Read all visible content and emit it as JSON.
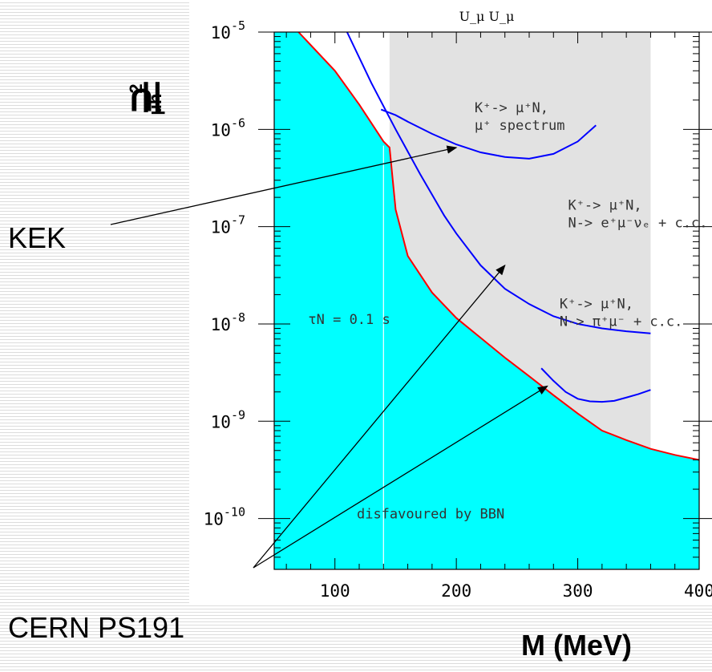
{
  "chart_data": {
    "type": "line",
    "title": "U_μ U_μ",
    "ylabel": "|U_μh|^2",
    "ylabel_parts": {
      "base": "|U",
      "sub": "μh",
      "rest": "|",
      "sup": "2"
    },
    "xlabel": "M (MeV)",
    "xscale": "linear",
    "yscale": "log",
    "xlim": [
      50,
      400
    ],
    "ylim": [
      3e-11,
      1e-05
    ],
    "x_ticks": [
      100,
      200,
      300,
      400
    ],
    "y_ticks": [
      {
        "exp": -5,
        "label": "10^-5"
      },
      {
        "exp": -6,
        "label": "10^-6"
      },
      {
        "exp": -7,
        "label": "10^-7"
      },
      {
        "exp": -8,
        "label": "10^-8"
      },
      {
        "exp": -9,
        "label": "10^-9"
      },
      {
        "exp": -10,
        "label": "10^-10"
      }
    ],
    "regions": [
      {
        "name": "disfavoured by BBN",
        "color": "#00ffff",
        "boundary_x": [
          70,
          100,
          120,
          140,
          145,
          150,
          160,
          180,
          200,
          220,
          240,
          260,
          280,
          300,
          320,
          340,
          360,
          380,
          400
        ],
        "boundary_y": [
          1e-05,
          4e-06,
          1.8e-06,
          7.5e-07,
          6.5e-07,
          1.5e-07,
          5e-08,
          2.1e-08,
          1.15e-08,
          7.2e-09,
          4.5e-09,
          2.9e-09,
          1.85e-09,
          1.2e-09,
          8e-10,
          6.4e-10,
          5.2e-10,
          4.5e-10,
          4e-10
        ]
      },
      {
        "name": "excluded (grey)",
        "color": "#e2e2e2",
        "x_range": [
          145,
          360
        ]
      }
    ],
    "series": [
      {
        "color": "#0000ff",
        "x": [
          138,
          150,
          160,
          180,
          200,
          220,
          240,
          260,
          280,
          300,
          315
        ],
        "y": [
          1.6e-06,
          1.4e-06,
          1.2e-06,
          9e-07,
          7e-07,
          5.8e-07,
          5.2e-07,
          5e-07,
          5.6e-07,
          7.5e-07,
          1.1e-06
        ]
      },
      {
        "color": "#0000ff",
        "x": [
          110,
          130,
          150,
          170,
          190,
          200,
          220,
          240,
          260,
          280,
          300,
          320,
          340,
          360
        ],
        "y": [
          1e-05,
          3e-06,
          1e-06,
          3.5e-07,
          1.3e-07,
          8.5e-08,
          4e-08,
          2.3e-08,
          1.6e-08,
          1.2e-08,
          1e-08,
          9e-09,
          8.4e-09,
          8e-09
        ]
      },
      {
        "color": "#0000ff",
        "x": [
          270,
          280,
          290,
          300,
          310,
          320,
          330,
          340,
          350,
          360
        ],
        "y": [
          3.5e-09,
          2.6e-09,
          2e-09,
          1.7e-09,
          1.6e-09,
          1.58e-09,
          1.62e-09,
          1.75e-09,
          1.9e-09,
          2.1e-09
        ]
      },
      {
        "color": "#ff0000",
        "x": [
          70,
          100,
          120,
          140,
          145,
          150,
          160,
          180,
          200,
          220,
          240,
          260,
          280,
          300,
          320,
          340,
          360,
          380,
          400
        ],
        "y": [
          1e-05,
          4e-06,
          1.8e-06,
          7.5e-07,
          6.5e-07,
          1.5e-07,
          5e-08,
          2.1e-08,
          1.15e-08,
          7.2e-09,
          4.5e-09,
          2.9e-09,
          1.85e-09,
          1.2e-09,
          8e-10,
          6.4e-10,
          5.2e-10,
          4.5e-10,
          4e-10
        ]
      }
    ],
    "vline": {
      "x": 140,
      "color": "#ffffff"
    },
    "annotations": [
      {
        "lines": [
          "K⁺-> μ⁺N,",
          "μ⁺ spectrum"
        ],
        "x": 215,
        "y": 1.5e-06
      },
      {
        "lines": [
          "K⁺-> μ⁺N,",
          "N-> e⁺μ⁻νₑ + c.c."
        ],
        "x": 292,
        "y": 1.5e-07
      },
      {
        "lines": [
          "K⁺-> μ⁺N,",
          "N-> π⁺μ⁻ + c.c."
        ],
        "x": 285,
        "y": 1.45e-08
      },
      {
        "lines": [
          "τN = 0.1 s"
        ],
        "x": 78,
        "y": 1e-08
      },
      {
        "lines": [
          "disfavoured by BBN"
        ],
        "x": 118,
        "y": 1e-10
      }
    ],
    "callouts": {
      "kek": {
        "label": "KEK",
        "targets": [
          {
            "x": 200,
            "y": 6.5e-07
          }
        ]
      },
      "cern": {
        "label": "CERN PS191",
        "targets": [
          {
            "x": 240,
            "y": 4e-08
          },
          {
            "x": 275,
            "y": 2.3e-09
          }
        ]
      }
    }
  }
}
